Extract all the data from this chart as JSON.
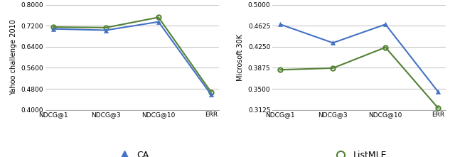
{
  "categories": [
    "NDCG@1",
    "NDCG@3",
    "NDCG@10",
    "ERR"
  ],
  "yahoo": {
    "CA": [
      0.708,
      0.703,
      0.735,
      0.458
    ],
    "ListMLE": [
      0.715,
      0.713,
      0.752,
      0.468
    ]
  },
  "microsoft": {
    "CA": [
      0.465,
      0.432,
      0.465,
      0.345
    ],
    "ListMLE": [
      0.384,
      0.387,
      0.424,
      0.316
    ]
  },
  "yahoo_ylim": [
    0.4,
    0.8
  ],
  "yahoo_yticks": [
    0.4,
    0.48,
    0.56,
    0.64,
    0.72,
    0.8
  ],
  "microsoft_ylim": [
    0.3125,
    0.5
  ],
  "microsoft_yticks": [
    0.3125,
    0.35,
    0.3875,
    0.425,
    0.4625,
    0.5
  ],
  "yahoo_ylabel": "Yahoo challenge 2010",
  "microsoft_ylabel": "Microsoft 30K",
  "ca_color": "#4472c4",
  "listmle_color": "#538135",
  "background_color": "#ffffff",
  "grid_color": "#c8c8c8",
  "legend_ca_label": "CA",
  "legend_listmle_label": "ListMLE",
  "fontsize_tick": 6.5,
  "fontsize_ylabel": 7,
  "fontsize_legend": 9
}
